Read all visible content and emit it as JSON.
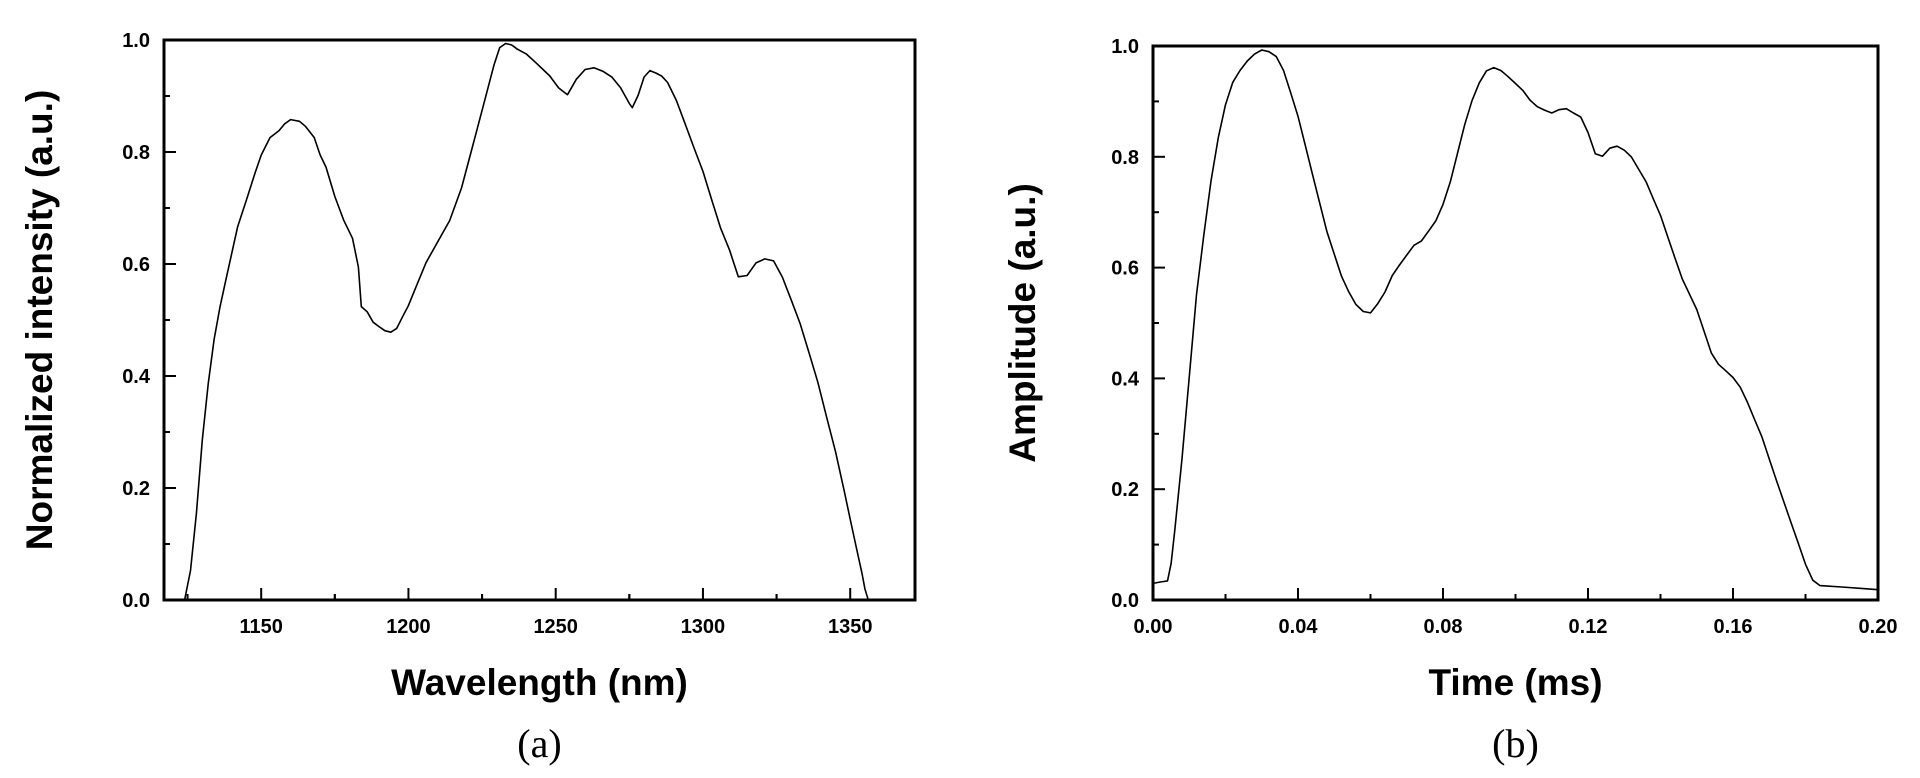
{
  "chart_data": [
    {
      "type": "line",
      "panel_label": "(a)",
      "xlabel": "Wavelength (nm)",
      "ylabel": "Normalized intensity (a.u.)",
      "xlim": [
        1117,
        1372
      ],
      "ylim": [
        0.0,
        1.0
      ],
      "xticks": [
        "1150",
        "1200",
        "1250",
        "1300",
        "1350"
      ],
      "yticks": [
        "0.0",
        "0.2",
        "0.4",
        "0.6",
        "0.8",
        "1.0"
      ],
      "grid": false,
      "series": [
        {
          "x": [
            1124,
            1126,
            1128,
            1130,
            1132,
            1134,
            1136,
            1138,
            1140,
            1142,
            1145,
            1148,
            1150,
            1153,
            1156,
            1158,
            1160,
            1163,
            1165,
            1168,
            1170,
            1172,
            1175,
            1178,
            1181,
            1183,
            1184,
            1186,
            1188,
            1190,
            1192,
            1194,
            1196,
            1198,
            1200,
            1203,
            1206,
            1210,
            1214,
            1218,
            1222,
            1226,
            1229,
            1231,
            1233,
            1235,
            1237,
            1240,
            1244,
            1248,
            1251,
            1254,
            1257,
            1260,
            1263,
            1266,
            1269,
            1272,
            1275,
            1276,
            1278,
            1280,
            1282,
            1284,
            1286,
            1288,
            1291,
            1294,
            1297,
            1300,
            1303,
            1306,
            1309,
            1312,
            1315,
            1318,
            1321,
            1324,
            1327,
            1330,
            1333,
            1336,
            1339,
            1342,
            1345,
            1348,
            1350,
            1352,
            1354,
            1355,
            1356
          ],
          "y": [
            0.0,
            0.05,
            0.15,
            0.28,
            0.38,
            0.46,
            0.52,
            0.57,
            0.62,
            0.67,
            0.72,
            0.77,
            0.8,
            0.83,
            0.84,
            0.85,
            0.855,
            0.85,
            0.84,
            0.82,
            0.79,
            0.77,
            0.72,
            0.68,
            0.65,
            0.6,
            0.53,
            0.52,
            0.5,
            0.49,
            0.48,
            0.475,
            0.48,
            0.5,
            0.52,
            0.56,
            0.6,
            0.64,
            0.68,
            0.74,
            0.82,
            0.9,
            0.96,
            0.99,
            0.995,
            0.99,
            0.98,
            0.97,
            0.95,
            0.93,
            0.91,
            0.9,
            0.93,
            0.95,
            0.955,
            0.95,
            0.94,
            0.92,
            0.89,
            0.88,
            0.9,
            0.93,
            0.94,
            0.935,
            0.93,
            0.92,
            0.89,
            0.85,
            0.81,
            0.77,
            0.72,
            0.67,
            0.63,
            0.58,
            0.58,
            0.6,
            0.605,
            0.6,
            0.57,
            0.53,
            0.49,
            0.44,
            0.39,
            0.33,
            0.27,
            0.2,
            0.15,
            0.1,
            0.05,
            0.02,
            0.0
          ]
        }
      ]
    },
    {
      "type": "line",
      "panel_label": "(b)",
      "xlabel": "Time (ms)",
      "ylabel": "Amplitude (a.u.)",
      "xlim": [
        0.0,
        0.2
      ],
      "ylim": [
        0.0,
        1.0
      ],
      "xticks": [
        "0.00",
        "0.04",
        "0.08",
        "0.12",
        "0.16",
        "0.20"
      ],
      "yticks": [
        "0.0",
        "0.2",
        "0.4",
        "0.6",
        "0.8",
        "1.0"
      ],
      "grid": false,
      "series": [
        {
          "x": [
            0.0,
            0.002,
            0.004,
            0.005,
            0.006,
            0.008,
            0.01,
            0.012,
            0.014,
            0.016,
            0.018,
            0.02,
            0.022,
            0.024,
            0.026,
            0.028,
            0.03,
            0.032,
            0.034,
            0.036,
            0.038,
            0.04,
            0.042,
            0.044,
            0.046,
            0.048,
            0.05,
            0.052,
            0.054,
            0.056,
            0.058,
            0.06,
            0.062,
            0.064,
            0.066,
            0.068,
            0.07,
            0.072,
            0.074,
            0.076,
            0.078,
            0.08,
            0.082,
            0.084,
            0.086,
            0.088,
            0.09,
            0.092,
            0.094,
            0.096,
            0.098,
            0.1,
            0.102,
            0.104,
            0.106,
            0.108,
            0.11,
            0.112,
            0.114,
            0.116,
            0.118,
            0.12,
            0.122,
            0.124,
            0.126,
            0.128,
            0.13,
            0.132,
            0.134,
            0.136,
            0.138,
            0.14,
            0.142,
            0.144,
            0.146,
            0.148,
            0.15,
            0.152,
            0.154,
            0.156,
            0.158,
            0.16,
            0.162,
            0.164,
            0.166,
            0.168,
            0.17,
            0.172,
            0.174,
            0.176,
            0.178,
            0.18,
            0.182,
            0.184,
            0.186,
            0.19,
            0.195,
            0.2
          ],
          "y": [
            0.03,
            0.03,
            0.03,
            0.06,
            0.12,
            0.25,
            0.4,
            0.55,
            0.66,
            0.76,
            0.84,
            0.9,
            0.94,
            0.96,
            0.975,
            0.985,
            0.99,
            0.985,
            0.975,
            0.95,
            0.91,
            0.87,
            0.82,
            0.77,
            0.72,
            0.67,
            0.63,
            0.59,
            0.56,
            0.535,
            0.52,
            0.515,
            0.53,
            0.55,
            0.58,
            0.6,
            0.62,
            0.64,
            0.65,
            0.67,
            0.69,
            0.72,
            0.76,
            0.81,
            0.86,
            0.9,
            0.93,
            0.95,
            0.955,
            0.95,
            0.94,
            0.93,
            0.92,
            0.905,
            0.895,
            0.89,
            0.885,
            0.89,
            0.89,
            0.88,
            0.87,
            0.84,
            0.8,
            0.795,
            0.81,
            0.815,
            0.81,
            0.8,
            0.78,
            0.76,
            0.73,
            0.7,
            0.66,
            0.62,
            0.58,
            0.55,
            0.52,
            0.48,
            0.44,
            0.42,
            0.41,
            0.4,
            0.385,
            0.36,
            0.33,
            0.3,
            0.26,
            0.22,
            0.18,
            0.14,
            0.1,
            0.06,
            0.03,
            0.02,
            0.02,
            0.02,
            0.02,
            0.02
          ]
        }
      ]
    }
  ]
}
